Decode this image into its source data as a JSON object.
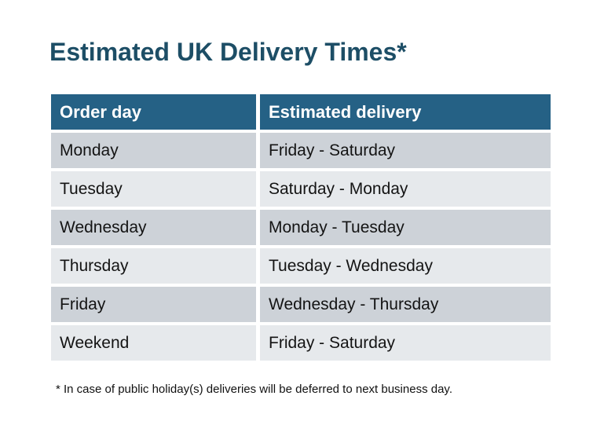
{
  "title": "Estimated UK Delivery Times*",
  "colors": {
    "title_text": "#1d4e66",
    "header_bg": "#256185",
    "header_text": "#ffffff",
    "row_odd_bg": "#cdd2d8",
    "row_even_bg": "#e6e9ec",
    "body_text": "#141414",
    "page_bg": "#ffffff"
  },
  "table": {
    "header": {
      "order_day": "Order day",
      "estimated_delivery": "Estimated delivery"
    },
    "rows": [
      {
        "order_day": "Monday",
        "estimated_delivery": "Friday - Saturday"
      },
      {
        "order_day": "Tuesday",
        "estimated_delivery": "Saturday - Monday"
      },
      {
        "order_day": "Wednesday",
        "estimated_delivery": "Monday - Tuesday"
      },
      {
        "order_day": "Thursday",
        "estimated_delivery": "Tuesday - Wednesday"
      },
      {
        "order_day": "Friday",
        "estimated_delivery": "Wednesday - Thursday"
      },
      {
        "order_day": "Weekend",
        "estimated_delivery": "Friday - Saturday"
      }
    ]
  },
  "footnote": "* In case of public holiday(s) deliveries will be deferred to next business day.",
  "chart_data": {
    "type": "table",
    "title": "Estimated UK Delivery Times*",
    "columns": [
      "Order day",
      "Estimated delivery"
    ],
    "rows": [
      [
        "Monday",
        "Friday - Saturday"
      ],
      [
        "Tuesday",
        "Saturday - Monday"
      ],
      [
        "Wednesday",
        "Monday - Tuesday"
      ],
      [
        "Thursday",
        "Tuesday - Wednesday"
      ],
      [
        "Friday",
        "Wednesday - Thursday"
      ],
      [
        "Weekend",
        "Friday - Saturday"
      ]
    ],
    "footnote": "* In case of public holiday(s) deliveries will be deferred to next business day.",
    "layout": {
      "header_style": "teal-bold-white",
      "row_striping": "alternating-gray"
    }
  }
}
